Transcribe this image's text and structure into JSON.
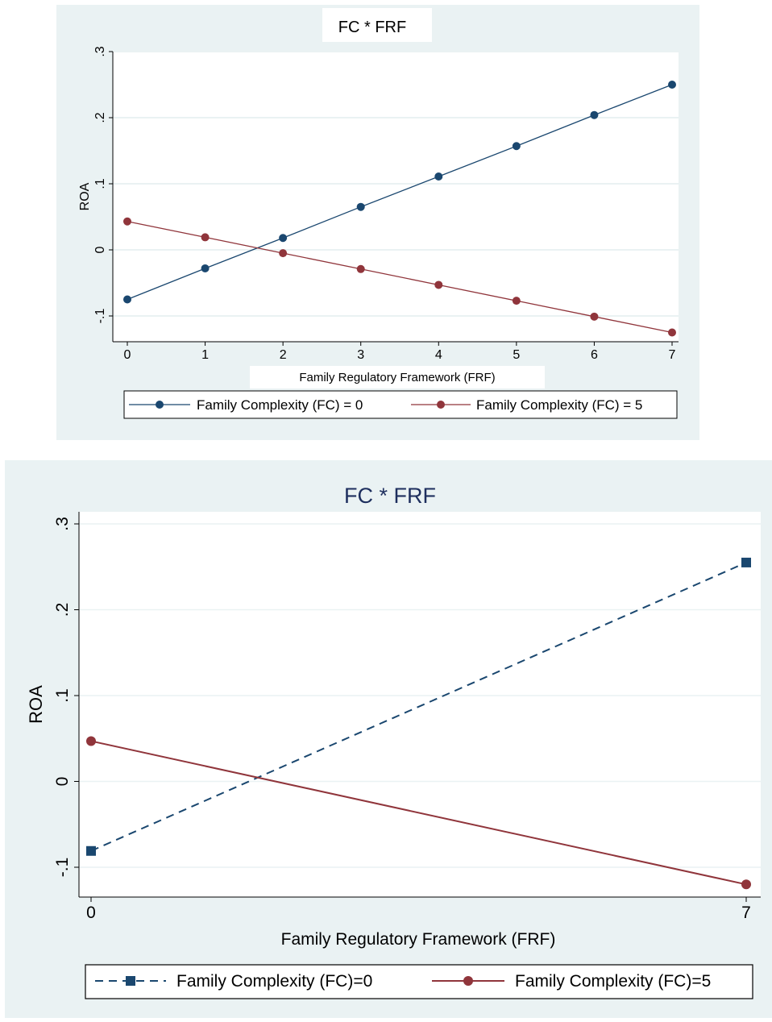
{
  "chart_data": [
    {
      "type": "line",
      "title": "FC * FRF",
      "xlabel": "Family Regulatory Framework (FRF)",
      "ylabel": "ROA",
      "x": [
        0,
        1,
        2,
        3,
        4,
        5,
        6,
        7
      ],
      "xticks": [
        "0",
        "1",
        "2",
        "3",
        "4",
        "5",
        "6",
        "7"
      ],
      "yticks": [
        {
          "value": -0.1,
          "label": "-.1"
        },
        {
          "value": 0,
          "label": "0"
        },
        {
          "value": 0.1,
          "label": ".1"
        },
        {
          "value": 0.2,
          "label": ".2"
        },
        {
          "value": 0.3,
          "label": ".3"
        }
      ],
      "xlim": [
        0,
        7
      ],
      "ylim": [
        -0.1,
        0.3
      ],
      "grid": true,
      "legend_position": "bottom",
      "series": [
        {
          "name": "Family Complexity (FC) = 0",
          "color": "#1a476f",
          "marker": "circle",
          "dash": "solid",
          "values": [
            -0.075,
            -0.028,
            0.018,
            0.065,
            0.111,
            0.157,
            0.204,
            0.25
          ]
        },
        {
          "name": "Family Complexity (FC) = 5",
          "color": "#90353b",
          "marker": "circle",
          "dash": "solid",
          "values": [
            0.043,
            0.019,
            -0.005,
            -0.029,
            -0.053,
            -0.077,
            -0.101,
            -0.125
          ]
        }
      ],
      "colors": {
        "background": "#eaf2f3",
        "plot_background": "#ffffff",
        "grid": "#eaf2f3"
      }
    },
    {
      "type": "line",
      "title": "FC * FRF",
      "xlabel": "Family Regulatory Framework (FRF)",
      "ylabel": "ROA",
      "x": [
        0,
        7
      ],
      "xticks": [
        "0",
        "7"
      ],
      "yticks": [
        {
          "value": -0.1,
          "label": "-.1"
        },
        {
          "value": 0,
          "label": "0"
        },
        {
          "value": 0.1,
          "label": ".1"
        },
        {
          "value": 0.2,
          "label": ".2"
        },
        {
          "value": 0.3,
          "label": ".3"
        }
      ],
      "xlim": [
        0,
        7
      ],
      "ylim": [
        -0.1,
        0.3
      ],
      "grid": true,
      "legend_position": "bottom",
      "series": [
        {
          "name": "Family Complexity (FC)=0",
          "color": "#1a476f",
          "marker": "square",
          "dash": "dashed",
          "values": [
            -0.081,
            0.255
          ]
        },
        {
          "name": "Family Complexity (FC)=5",
          "color": "#90353b",
          "marker": "circle",
          "dash": "solid",
          "values": [
            0.047,
            -0.12
          ]
        }
      ],
      "colors": {
        "background": "#eaf2f3",
        "plot_background": "#ffffff",
        "grid": "#eaf2f3"
      }
    }
  ]
}
